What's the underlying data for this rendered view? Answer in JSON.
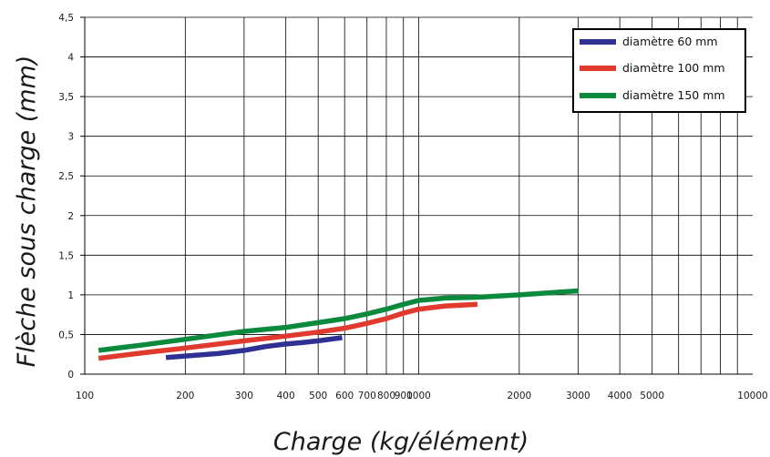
{
  "chart_data": {
    "type": "line",
    "title": "",
    "xlabel": "Charge (kg/élément)",
    "ylabel": "Flèche sous charge (mm)",
    "x_scale": "log",
    "xlim": [
      100,
      10000
    ],
    "ylim": [
      0,
      4.5
    ],
    "x_tick_labels": [
      "100",
      "200",
      "300",
      "400",
      "500",
      "600",
      "700",
      "800",
      "900",
      "1000",
      "2000",
      "3000",
      "4000",
      "5000",
      "10000"
    ],
    "x_tick_values": [
      100,
      200,
      300,
      400,
      500,
      600,
      700,
      800,
      900,
      1000,
      2000,
      3000,
      4000,
      5000,
      10000
    ],
    "y_tick_labels": [
      "0",
      "0,5",
      "1",
      "1,5",
      "2",
      "2,5",
      "3",
      "3,5",
      "4",
      "4,5"
    ],
    "y_tick_values": [
      0,
      0.5,
      1,
      1.5,
      2,
      2.5,
      3,
      3.5,
      4,
      4.5
    ],
    "x_gridlines": [
      200,
      300,
      400,
      500,
      600,
      700,
      800,
      900,
      1000,
      2000,
      3000,
      4000,
      5000,
      6000,
      7000,
      8000,
      9000
    ],
    "grid": true,
    "legend_position": "top-right",
    "series": [
      {
        "name": "diamètre 60 mm",
        "color": "#2e3192",
        "x": [
          175,
          250,
          300,
          350,
          400,
          450,
          500,
          590
        ],
        "y": [
          0.21,
          0.26,
          0.3,
          0.35,
          0.38,
          0.4,
          0.42,
          0.46
        ]
      },
      {
        "name": "diamètre 100 mm",
        "color": "#e03a2e",
        "x": [
          110,
          150,
          200,
          300,
          400,
          500,
          600,
          700,
          800,
          900,
          1000,
          1200,
          1500
        ],
        "y": [
          0.2,
          0.27,
          0.33,
          0.42,
          0.48,
          0.53,
          0.58,
          0.64,
          0.7,
          0.77,
          0.82,
          0.86,
          0.88
        ]
      },
      {
        "name": "diamètre 150 mm",
        "color": "#0b8a3e",
        "x": [
          110,
          150,
          200,
          300,
          400,
          500,
          600,
          700,
          800,
          900,
          1000,
          1200,
          1500,
          2000,
          3000
        ],
        "y": [
          0.3,
          0.37,
          0.44,
          0.54,
          0.59,
          0.65,
          0.7,
          0.76,
          0.82,
          0.88,
          0.93,
          0.96,
          0.97,
          1.0,
          1.05
        ]
      }
    ]
  }
}
